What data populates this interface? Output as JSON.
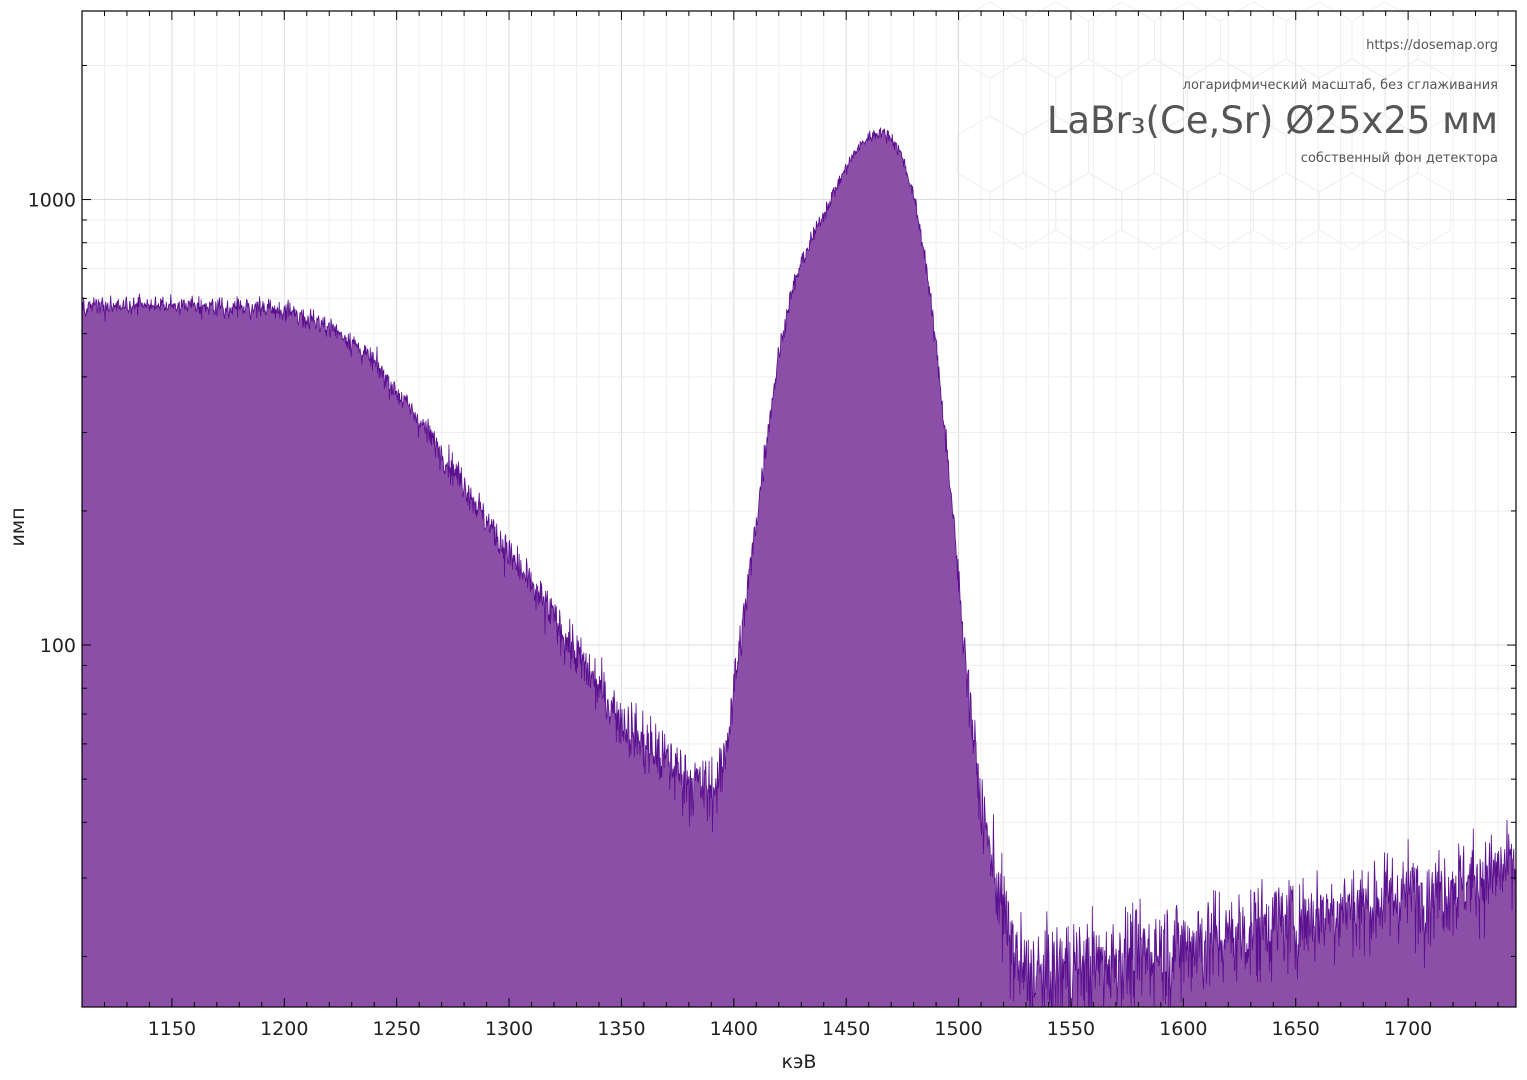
{
  "chart_data": {
    "type": "area",
    "xlabel": "кэВ",
    "ylabel": "имп",
    "xlim": [
      1110,
      1748
    ],
    "ylim": [
      15.4,
      2650
    ],
    "yscale": "log",
    "xticks": [
      1150,
      1200,
      1250,
      1300,
      1350,
      1400,
      1450,
      1500,
      1550,
      1600,
      1650,
      1700
    ],
    "yticks": [
      100,
      1000
    ],
    "ytick_labels": [
      "100",
      "1000"
    ],
    "grid": true,
    "annotations": {
      "url": "https://dosemap.org",
      "scale_note": "логарифмический масштаб, без сглаживания",
      "title": "LaBr₃(Ce,Sr) Ø25x25 мм",
      "subtitle": "собственный фон детектора"
    },
    "colors": {
      "fill": "#8b4fa7",
      "line": "#5a0f8f",
      "grid": "#dcdcdc",
      "text": "#555555"
    },
    "series": [
      {
        "x": [
          1110,
          1120,
          1130,
          1140,
          1150,
          1160,
          1170,
          1180,
          1190,
          1200,
          1210,
          1220,
          1230,
          1240,
          1250,
          1260,
          1270,
          1280,
          1290,
          1300,
          1310,
          1320,
          1330,
          1340,
          1350,
          1360,
          1370,
          1380,
          1390,
          1395,
          1400,
          1405,
          1410,
          1415,
          1420,
          1425,
          1430,
          1435,
          1440,
          1445,
          1450,
          1455,
          1460,
          1465,
          1470,
          1475,
          1480,
          1485,
          1490,
          1495,
          1500,
          1505,
          1510,
          1515,
          1520,
          1525,
          1530,
          1540,
          1550,
          1560,
          1570,
          1580,
          1590,
          1600,
          1610,
          1620,
          1630,
          1640,
          1650,
          1660,
          1670,
          1680,
          1690,
          1700,
          1710,
          1720,
          1730,
          1740,
          1748
        ],
        "values": [
          570,
          575,
          575,
          580,
          580,
          580,
          575,
          570,
          570,
          560,
          545,
          520,
          480,
          430,
          370,
          320,
          270,
          230,
          190,
          160,
          135,
          115,
          95,
          80,
          68,
          60,
          55,
          50,
          47,
          52,
          80,
          120,
          190,
          300,
          450,
          600,
          720,
          820,
          930,
          1050,
          1180,
          1300,
          1380,
          1420,
          1380,
          1250,
          1020,
          750,
          470,
          270,
          140,
          75,
          43,
          33,
          25,
          20,
          18,
          18,
          19,
          19,
          20,
          20,
          21,
          21,
          22,
          22,
          23,
          24,
          24,
          25,
          26,
          26,
          27,
          28,
          28,
          29,
          30,
          31,
          32
        ]
      }
    ]
  }
}
